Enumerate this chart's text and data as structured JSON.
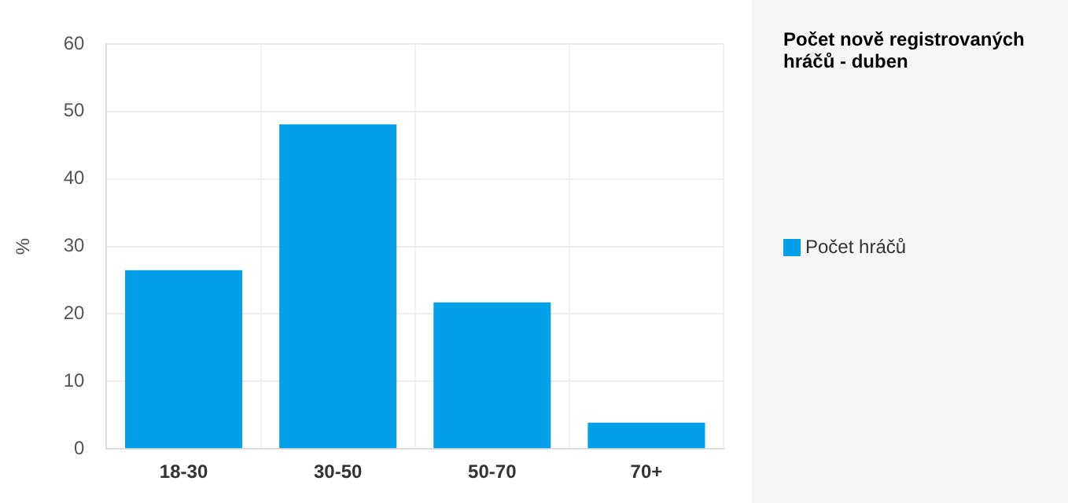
{
  "chart_data": {
    "type": "bar",
    "title": "Počet nově registrovaných hráčů - duben",
    "ylabel": "%",
    "categories": [
      "18-30",
      "30-50",
      "50-70",
      "70+"
    ],
    "series": [
      {
        "name": "Počet hráčů",
        "color": "#039fe8",
        "values": [
          26.5,
          48.1,
          21.7,
          3.9
        ]
      }
    ],
    "ylim": [
      0,
      60
    ],
    "yticks": [
      0,
      10,
      20,
      30,
      40,
      50,
      60
    ],
    "grid": true,
    "legend": "right"
  }
}
